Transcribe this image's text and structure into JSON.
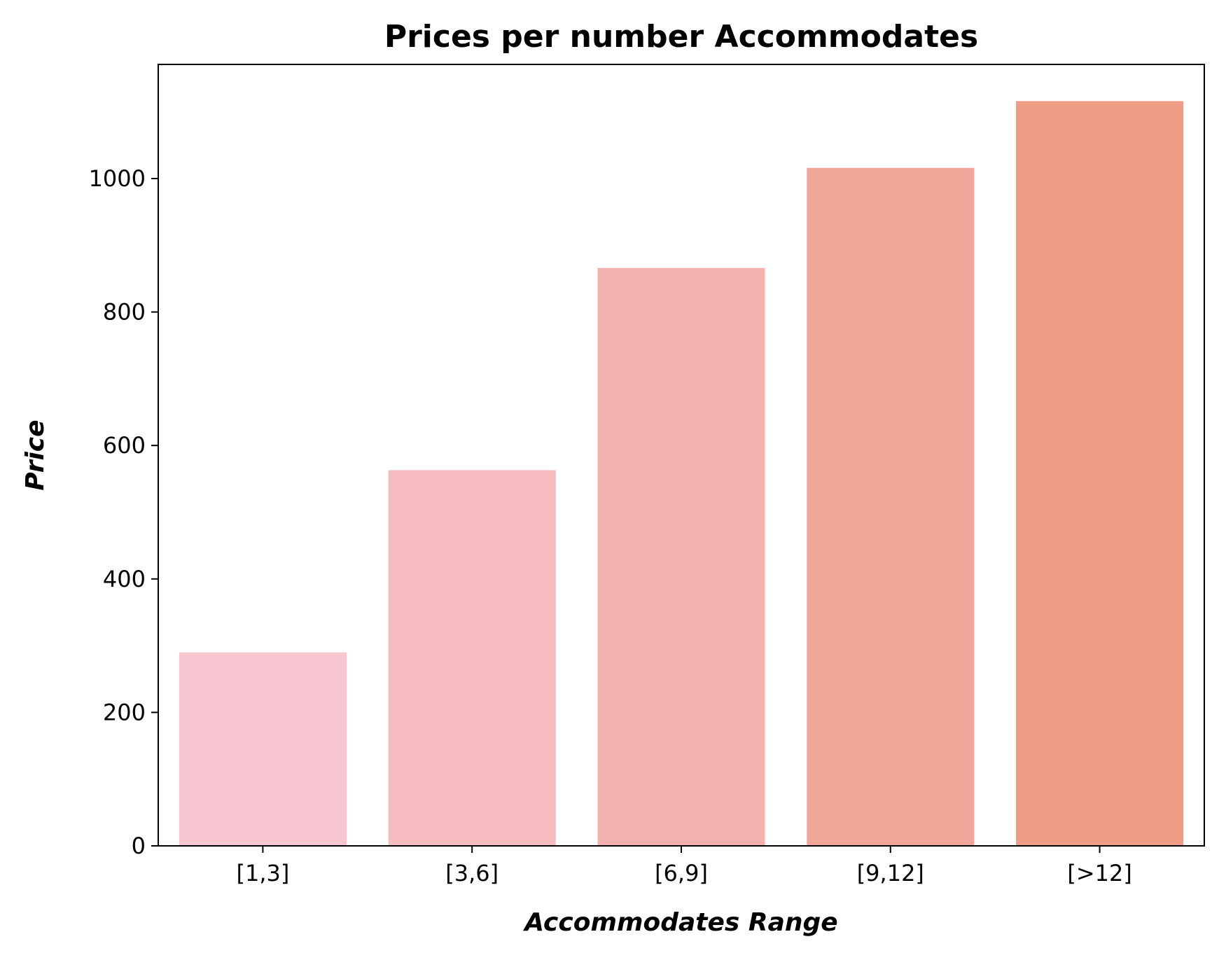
{
  "chart_data": {
    "type": "bar",
    "title": "Prices per number Accommodates",
    "xlabel": "Accommodates Range",
    "ylabel": "Price",
    "categories": [
      "[1,3]",
      "[3,6]",
      "[6,9]",
      "[9,12]",
      "[>12]"
    ],
    "values": [
      290,
      563,
      866,
      1016,
      1116
    ],
    "colors": [
      "#f7c6d0",
      "#f6bcbf",
      "#f3b1ad",
      "#f0a79a",
      "#ee9c84"
    ],
    "ylim": [
      0,
      1171
    ],
    "yticks": [
      0,
      200,
      400,
      600,
      800,
      1000
    ],
    "yticklabels": [
      "0",
      "200",
      "400",
      "600",
      "800",
      "1000"
    ],
    "grid": false,
    "legend": "none"
  }
}
